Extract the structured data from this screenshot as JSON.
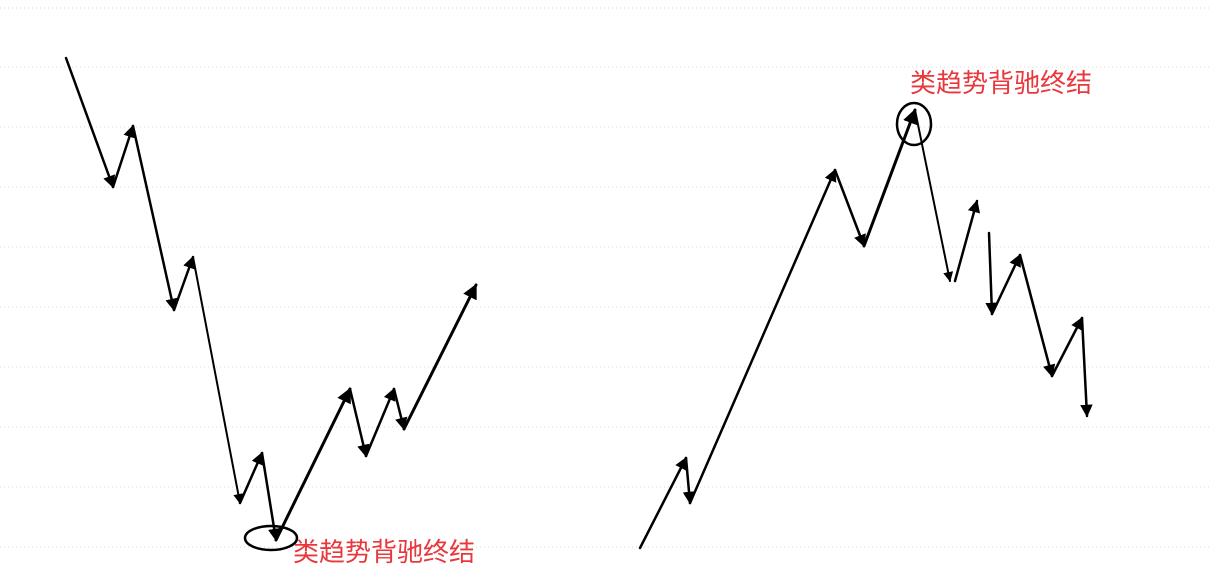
{
  "colors": {
    "background": "#ffffff",
    "grid": "#d9d9d9",
    "wave": "#000000",
    "annotation": "#e8383d"
  },
  "annotations": {
    "left_label": "类趋势背驰终结",
    "right_label": "类趋势背驰终结"
  }
}
